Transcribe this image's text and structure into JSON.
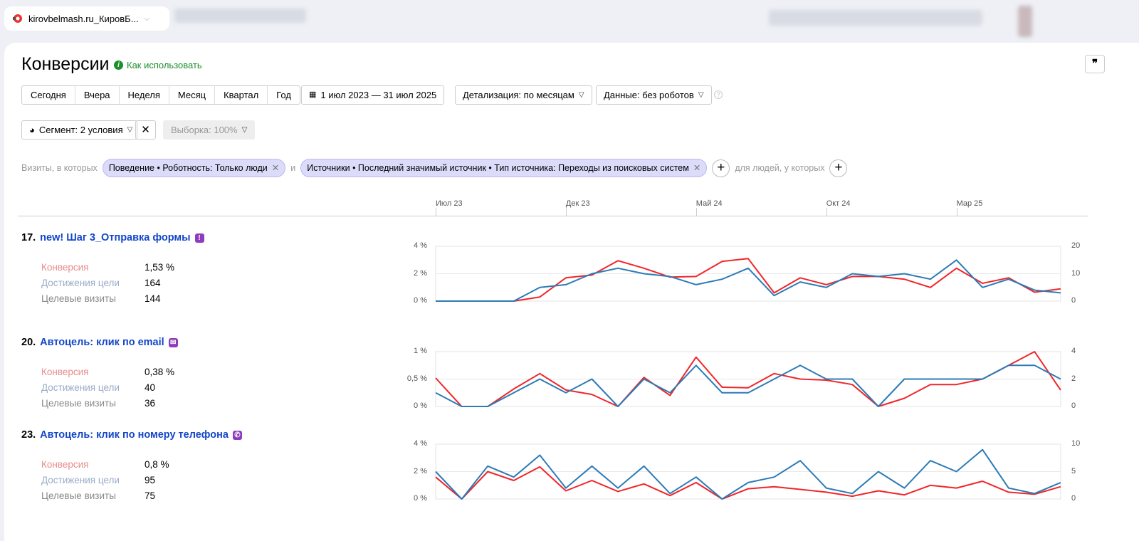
{
  "tab": {
    "title": "kirovbelmash.ru_КировБ...",
    "icon": "counter-logo-icon"
  },
  "header": {
    "title": "Конверсии",
    "howto": "Как использовать"
  },
  "periods": [
    "Сегодня",
    "Вчера",
    "Неделя",
    "Месяц",
    "Квартал",
    "Год"
  ],
  "date_range": "1 июл 2023 — 31 июл 2025",
  "detail": "Детализация: по месяцам",
  "data_filter": "Данные: без роботов",
  "segment": "Сегмент: 2 условия",
  "sample": "Выборка: 100%",
  "filters": {
    "prefix": "Визиты, в которых",
    "chip1": "Поведение • Роботность: Только люди",
    "and": "и",
    "chip2": "Источники • Последний значимый источник • Тип источника: Переходы из поисковых систем",
    "people": "для людей, у которых"
  },
  "timeline": {
    "labels": [
      "Июл 23",
      "Дек 23",
      "Май 24",
      "Окт 24",
      "Мар 25"
    ],
    "label_month_index": [
      0,
      5,
      10,
      15,
      20
    ],
    "months": 25
  },
  "colors": {
    "conversion": "#f0262a",
    "achievements": "#2c7bb6",
    "conv_label": "#e88c8c",
    "ach_label": "#9aabc8"
  },
  "metric_labels": {
    "conversion": "Конверсия",
    "achievements": "Достижения цели",
    "visits": "Целевые визиты"
  },
  "goals": [
    {
      "num": "17.",
      "name": "new! Шаг 3_Отправка формы",
      "icon": "form-goal-icon",
      "conversion": "1,53 %",
      "achievements": "164",
      "visits": "144",
      "chart_data": {
        "type": "line",
        "left_ticks": [
          "4 %",
          "2 %",
          "0 %"
        ],
        "left_max": 4,
        "right_ticks": [
          "20",
          "10",
          "0"
        ],
        "right_max": 20,
        "series": [
          {
            "axis": "left",
            "color": "#f0262a",
            "values": [
              0,
              0,
              0,
              0,
              0.3,
              1.7,
              1.9,
              2.95,
              2.4,
              1.75,
              1.8,
              2.9,
              3.1,
              0.6,
              1.7,
              1.2,
              1.8,
              1.8,
              1.6,
              1.0,
              2.4,
              1.3,
              1.7,
              0.65,
              0.9
            ]
          },
          {
            "axis": "right",
            "color": "#2c7bb6",
            "values": [
              0,
              0,
              0,
              0,
              5,
              6,
              10,
              12,
              10,
              9,
              6,
              8,
              12,
              2,
              7,
              5,
              10,
              9,
              10,
              8,
              15,
              5,
              8,
              4,
              3
            ]
          }
        ]
      }
    },
    {
      "num": "20.",
      "name": "Автоцель: клик по email",
      "icon": "email-goal-icon",
      "conversion": "0,38 %",
      "achievements": "40",
      "visits": "36",
      "chart_data": {
        "type": "line",
        "left_ticks": [
          "1 %",
          "0,5 %",
          "0 %"
        ],
        "left_max": 1,
        "right_ticks": [
          "4",
          "2",
          "0"
        ],
        "right_max": 4,
        "series": [
          {
            "axis": "left",
            "color": "#f0262a",
            "values": [
              0.52,
              0,
              0,
              0.32,
              0.6,
              0.3,
              0.22,
              0,
              0.53,
              0.2,
              0.9,
              0.35,
              0.34,
              0.6,
              0.5,
              0.48,
              0.4,
              0,
              0.15,
              0.4,
              0.4,
              0.5,
              0.75,
              1.0,
              0.3
            ]
          },
          {
            "axis": "right",
            "color": "#2c7bb6",
            "values": [
              1,
              0,
              0,
              1,
              2,
              1,
              2,
              0,
              2,
              1,
              3,
              1,
              1,
              2,
              3,
              2,
              2,
              0,
              2,
              2,
              2,
              2,
              3,
              3,
              2
            ]
          }
        ]
      }
    },
    {
      "num": "23.",
      "name": "Автоцель: клик по номеру телефона",
      "icon": "phone-goal-icon",
      "conversion": "0,8 %",
      "achievements": "95",
      "visits": "75",
      "chart_data": {
        "type": "line",
        "left_ticks": [
          "4 %",
          "2 %",
          "0 %"
        ],
        "left_max": 4,
        "right_ticks": [
          "10",
          "5",
          "0"
        ],
        "right_max": 10,
        "series": [
          {
            "axis": "left",
            "color": "#f0262a",
            "values": [
              1.6,
              0,
              2.0,
              1.35,
              2.35,
              0.6,
              1.35,
              0.55,
              1.1,
              0.25,
              1.2,
              0,
              0.75,
              0.9,
              0.7,
              0.5,
              0.2,
              0.6,
              0.3,
              1.0,
              0.8,
              1.3,
              0.5,
              0.35,
              0.9
            ]
          },
          {
            "axis": "right",
            "color": "#2c7bb6",
            "values": [
              5,
              0,
              6,
              4,
              8,
              2,
              6,
              2,
              6,
              1,
              4,
              0,
              3,
              4,
              7,
              2,
              1,
              5,
              2,
              7,
              5,
              9,
              2,
              1,
              3
            ]
          }
        ]
      }
    }
  ]
}
